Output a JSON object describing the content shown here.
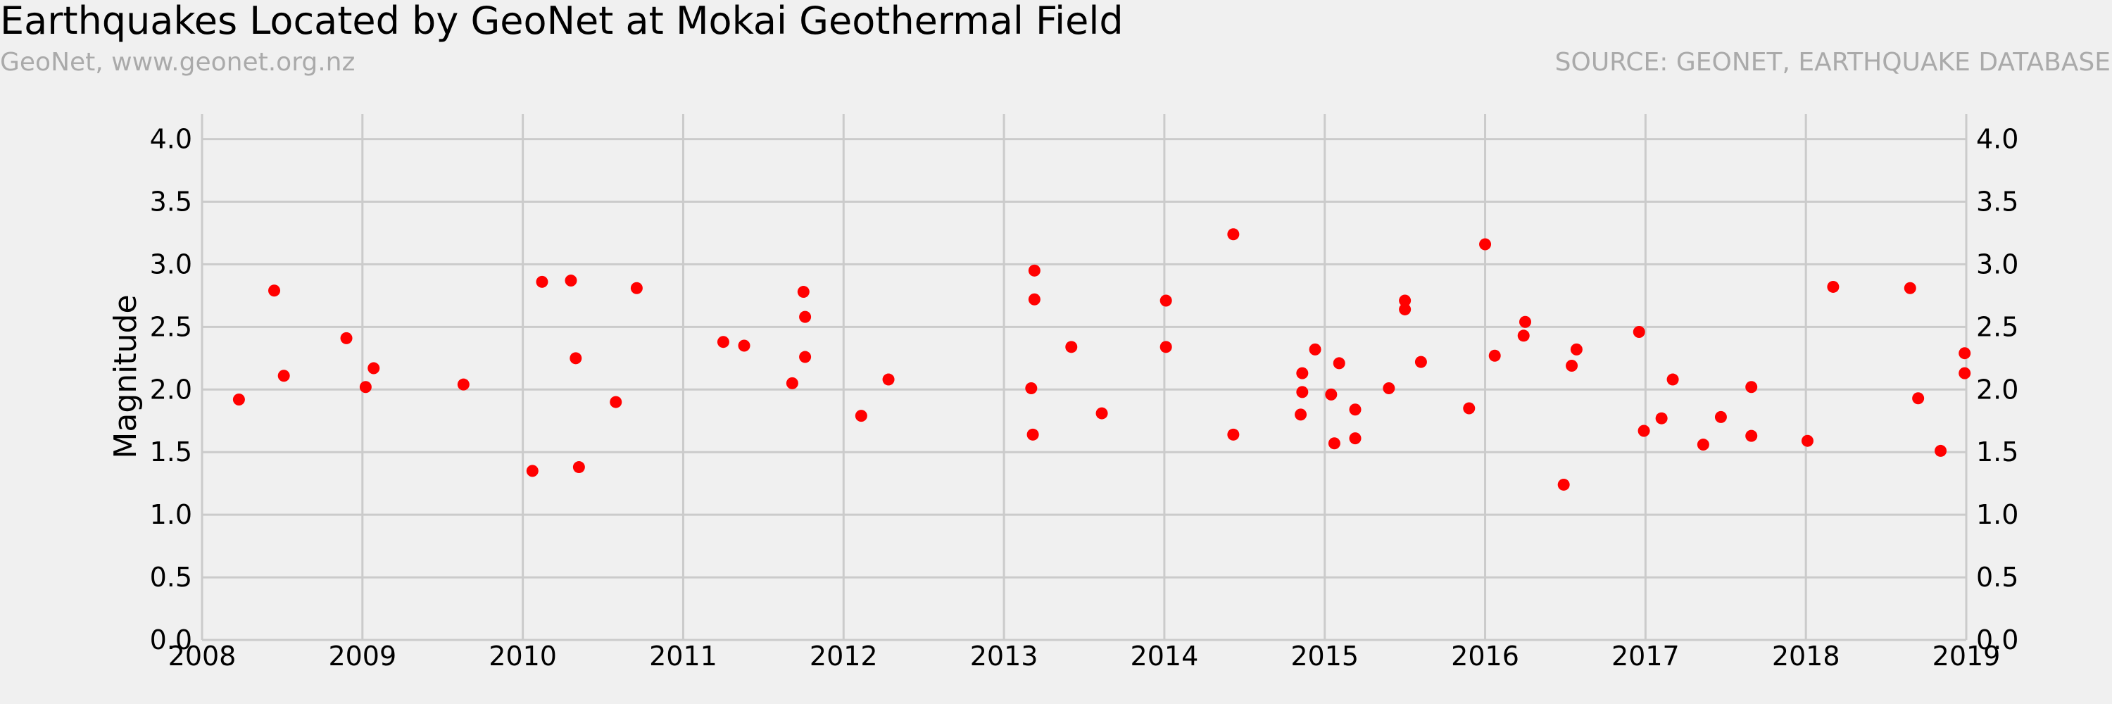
{
  "header": {
    "title": "Earthquakes Located by GeoNet at Mokai Geothermal Field",
    "subtitle_left": "GeoNet, www.geonet.org.nz",
    "subtitle_right": "SOURCE: GEONET, EARTHQUAKE DATABASE"
  },
  "colors": {
    "background": "#f0f0f0",
    "grid": "#cbcbcb",
    "marker": "#ff0000"
  },
  "chart_data": {
    "type": "scatter",
    "title": "Earthquakes Located by GeoNet at Mokai Geothermal Field",
    "xlabel": "",
    "ylabel": "Magnitude",
    "xlim": [
      2008,
      2019
    ],
    "ylim": [
      0.0,
      4.2
    ],
    "grid": true,
    "right_axis_ticks": true,
    "x_ticks": [
      2008,
      2009,
      2010,
      2011,
      2012,
      2013,
      2014,
      2015,
      2016,
      2017,
      2018,
      2019
    ],
    "x_tick_labels": [
      "2008",
      "2009",
      "2010",
      "2011",
      "2012",
      "2013",
      "2014",
      "2015",
      "2016",
      "2017",
      "2018",
      "2019"
    ],
    "y_ticks": [
      0.0,
      0.5,
      1.0,
      1.5,
      2.0,
      2.5,
      3.0,
      3.5,
      4.0
    ],
    "y_tick_labels": [
      "0.0",
      "0.5",
      "1.0",
      "1.5",
      "2.0",
      "2.5",
      "3.0",
      "3.5",
      "4.0"
    ],
    "series": [
      {
        "color": "#ff0000",
        "points": [
          [
            2008.23,
            1.92
          ],
          [
            2008.45,
            2.79
          ],
          [
            2008.51,
            2.11
          ],
          [
            2008.9,
            2.41
          ],
          [
            2009.02,
            2.02
          ],
          [
            2009.07,
            2.17
          ],
          [
            2009.63,
            2.04
          ],
          [
            2010.06,
            1.35
          ],
          [
            2010.12,
            2.86
          ],
          [
            2010.3,
            2.87
          ],
          [
            2010.33,
            2.25
          ],
          [
            2010.35,
            1.38
          ],
          [
            2010.58,
            1.9
          ],
          [
            2010.71,
            2.81
          ],
          [
            2011.25,
            2.38
          ],
          [
            2011.38,
            2.35
          ],
          [
            2011.68,
            2.05
          ],
          [
            2011.75,
            2.78
          ],
          [
            2011.76,
            2.58
          ],
          [
            2011.76,
            2.26
          ],
          [
            2012.11,
            1.79
          ],
          [
            2012.28,
            2.08
          ],
          [
            2013.17,
            2.01
          ],
          [
            2013.18,
            1.64
          ],
          [
            2013.19,
            2.95
          ],
          [
            2013.19,
            2.72
          ],
          [
            2013.42,
            2.34
          ],
          [
            2013.61,
            1.81
          ],
          [
            2014.01,
            2.71
          ],
          [
            2014.01,
            2.34
          ],
          [
            2014.43,
            3.24
          ],
          [
            2014.43,
            1.64
          ],
          [
            2014.85,
            1.8
          ],
          [
            2014.86,
            2.13
          ],
          [
            2014.86,
            1.98
          ],
          [
            2014.94,
            2.32
          ],
          [
            2015.04,
            1.96
          ],
          [
            2015.06,
            1.57
          ],
          [
            2015.09,
            2.21
          ],
          [
            2015.19,
            1.84
          ],
          [
            2015.19,
            1.61
          ],
          [
            2015.4,
            2.01
          ],
          [
            2015.5,
            2.71
          ],
          [
            2015.5,
            2.64
          ],
          [
            2015.6,
            2.22
          ],
          [
            2015.9,
            1.85
          ],
          [
            2016.0,
            3.16
          ],
          [
            2016.06,
            2.27
          ],
          [
            2016.24,
            2.43
          ],
          [
            2016.25,
            2.54
          ],
          [
            2016.49,
            1.24
          ],
          [
            2016.54,
            2.19
          ],
          [
            2016.57,
            2.32
          ],
          [
            2016.96,
            2.46
          ],
          [
            2016.99,
            1.67
          ],
          [
            2017.1,
            1.77
          ],
          [
            2017.17,
            2.08
          ],
          [
            2017.36,
            1.56
          ],
          [
            2017.47,
            1.78
          ],
          [
            2017.66,
            2.02
          ],
          [
            2017.66,
            1.63
          ],
          [
            2018.01,
            1.59
          ],
          [
            2018.17,
            2.82
          ],
          [
            2018.65,
            2.81
          ],
          [
            2018.7,
            1.93
          ],
          [
            2018.84,
            1.51
          ],
          [
            2018.99,
            2.29
          ],
          [
            2018.99,
            2.13
          ]
        ]
      }
    ]
  }
}
